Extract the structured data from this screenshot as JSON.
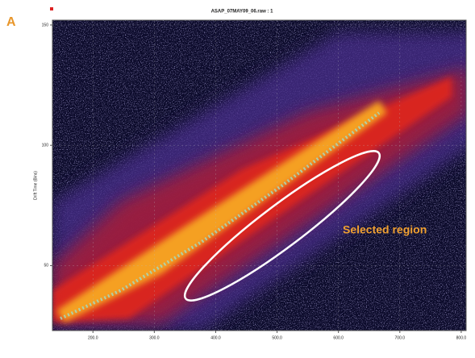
{
  "panel_label": "A",
  "chart_data": {
    "type": "heatmap",
    "title": "ASAP_07MAY09_06.raw : 1",
    "ylabel": "Drift Time (Bins)",
    "annotation": "Selected region",
    "xlim": [
      134,
      808
    ],
    "xticks": [
      {
        "value": 200,
        "label": "200.0"
      },
      {
        "value": 300,
        "label": "300.0"
      },
      {
        "value": 400,
        "label": "400.0"
      },
      {
        "value": 500,
        "label": "500.0"
      },
      {
        "value": 600,
        "label": "600.0"
      },
      {
        "value": 700,
        "label": "700.0"
      },
      {
        "value": 800,
        "label": "800.0"
      }
    ],
    "ylim": [
      23,
      152
    ],
    "yticks": [
      50,
      100,
      150
    ],
    "grid": true
  }
}
